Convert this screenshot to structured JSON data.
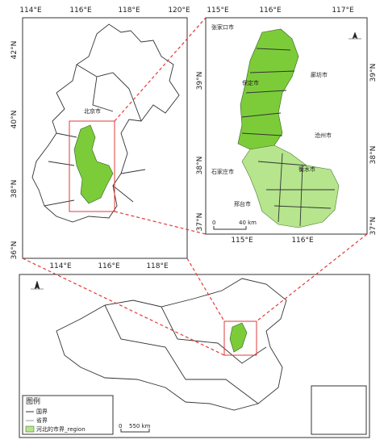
{
  "overview": {
    "top_lon_labels": [
      "114°E",
      "116°E",
      "118°E",
      "120°E"
    ],
    "bottom_lon_labels": [
      "114°E",
      "116°E",
      "118°E"
    ],
    "lat_labels": [
      "42°N",
      "40°N",
      "38°N",
      "36°N"
    ],
    "place": "北京市"
  },
  "detail": {
    "top_lon_labels": [
      "115°E",
      "116°E",
      "117°E"
    ],
    "bottom_lon_labels": [
      "115°E",
      "116°E"
    ],
    "left_lat_labels": [
      "39°N",
      "38°N",
      "37°N"
    ],
    "right_lat_labels": [
      "39°N",
      "38°N",
      "37°N"
    ],
    "cities": [
      "张家口市",
      "廊坊市",
      "保定市",
      "沧州市",
      "石家庄市",
      "衡水市",
      "邢台市"
    ],
    "scale": [
      "0",
      "40 km"
    ]
  },
  "china": {
    "legend_title": "图例",
    "legend_items": [
      "国界",
      "省界",
      "河北的市界_region"
    ],
    "scale": [
      "0",
      "550 km"
    ]
  }
}
